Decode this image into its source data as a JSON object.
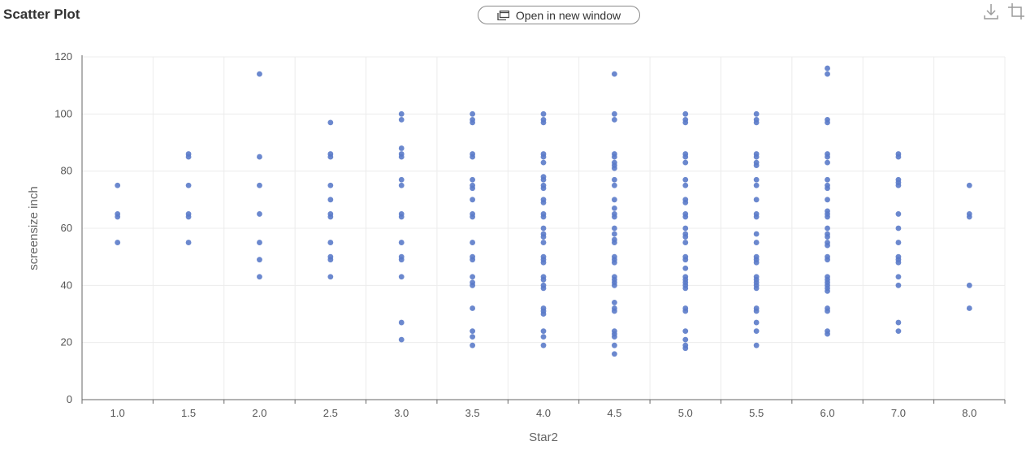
{
  "header": {
    "title": "Scatter Plot",
    "open_button_label": "Open in new window",
    "icons": [
      "window-icon",
      "download-icon",
      "crop-icon"
    ]
  },
  "chart_data": {
    "type": "scatter",
    "title": "Scatter Plot",
    "xlabel": "Star2",
    "ylabel": "screensize inch",
    "categories": [
      "1.0",
      "1.5",
      "2.0",
      "2.5",
      "3.0",
      "3.5",
      "4.0",
      "4.5",
      "5.0",
      "5.5",
      "6.0",
      "7.0",
      "8.0"
    ],
    "ylim": [
      0,
      120
    ],
    "yticks": [
      0,
      20,
      40,
      60,
      80,
      100,
      120
    ],
    "grid": true,
    "point_color": "#5b7bc9",
    "points": {
      "1.0": [
        75,
        65,
        64,
        55
      ],
      "1.5": [
        86,
        85,
        75,
        65,
        64,
        55
      ],
      "2.0": [
        114,
        85,
        75,
        65,
        55,
        49,
        43
      ],
      "2.5": [
        97,
        86,
        85,
        75,
        70,
        65,
        64,
        55,
        50,
        49,
        43
      ],
      "3.0": [
        100,
        98,
        88,
        86,
        85,
        77,
        75,
        65,
        64,
        55,
        50,
        49,
        43,
        27,
        21
      ],
      "3.5": [
        100,
        98,
        97,
        86,
        85,
        77,
        75,
        74,
        70,
        65,
        64,
        55,
        50,
        49,
        43,
        41,
        40,
        32,
        24,
        22,
        19
      ],
      "4.0": [
        100,
        98,
        97,
        86,
        85,
        83,
        78,
        77,
        75,
        74,
        70,
        69,
        65,
        64,
        60,
        58,
        57,
        55,
        50,
        49,
        48,
        43,
        42,
        40,
        39,
        32,
        31,
        30,
        24,
        22,
        19
      ],
      "4.5": [
        114,
        100,
        98,
        86,
        85,
        83,
        82,
        81,
        77,
        75,
        70,
        67,
        65,
        64,
        60,
        58,
        56,
        55,
        50,
        49,
        48,
        43,
        42,
        41,
        40,
        34,
        32,
        31,
        24,
        23,
        22,
        19,
        16
      ],
      "5.0": [
        100,
        98,
        97,
        86,
        85,
        83,
        77,
        75,
        70,
        69,
        65,
        64,
        60,
        58,
        57,
        55,
        50,
        49,
        46,
        43,
        42,
        41,
        40,
        39,
        32,
        31,
        24,
        21,
        19,
        18
      ],
      "5.5": [
        100,
        98,
        97,
        86,
        85,
        83,
        82,
        77,
        75,
        70,
        65,
        64,
        58,
        55,
        50,
        49,
        48,
        43,
        42,
        41,
        40,
        39,
        32,
        31,
        27,
        24,
        19
      ],
      "6.0": [
        116,
        114,
        98,
        97,
        86,
        85,
        83,
        77,
        75,
        74,
        70,
        66,
        65,
        64,
        60,
        58,
        57,
        55,
        54,
        50,
        49,
        43,
        42,
        41,
        40,
        39,
        38,
        32,
        31,
        24,
        23
      ],
      "7.0": [
        86,
        85,
        77,
        76,
        75,
        65,
        60,
        55,
        50,
        49,
        48,
        43,
        40,
        27,
        24
      ],
      "8.0": [
        75,
        65,
        64,
        40,
        32
      ]
    }
  }
}
